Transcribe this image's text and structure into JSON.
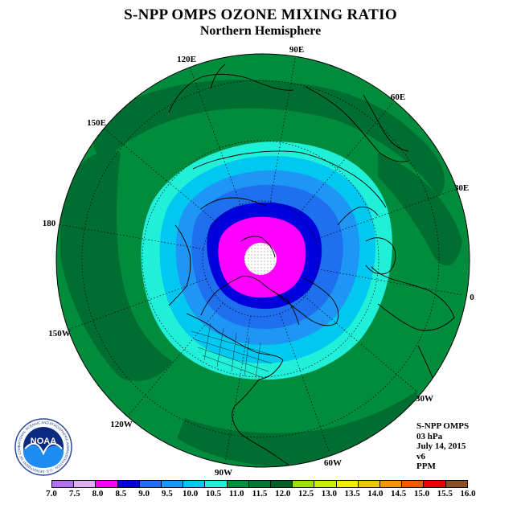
{
  "title": "S-NPP OMPS OZONE MIXING RATIO",
  "subtitle": "Northern Hemisphere",
  "longitude_labels": [
    "90E",
    "120E",
    "60E",
    "150E",
    "30E",
    "180",
    "0",
    "150W",
    "30W",
    "120W",
    "60W",
    "90W"
  ],
  "info": {
    "line1": "S-NPP OMPS",
    "line2": "03 hPa",
    "line3": "July 14, 2015",
    "line4": "v6",
    "line5": "PPM"
  },
  "logo": {
    "text": "NOAA",
    "ring_text": "NATIONAL OCEANIC AND ATMOSPHERIC ADMINISTRATION · U.S. DEPARTMENT OF COMMERCE"
  },
  "colorbar": {
    "ticks": [
      "7.0",
      "7.5",
      "8.0",
      "8.5",
      "9.0",
      "9.5",
      "10.0",
      "10.5",
      "11.0",
      "11.5",
      "12.0",
      "12.5",
      "13.0",
      "13.5",
      "14.0",
      "14.5",
      "15.0",
      "15.5",
      "16.0"
    ],
    "colors": [
      "#b070f0",
      "#e0b0f0",
      "#ff00ff",
      "#0000dd",
      "#1e70ee",
      "#1e96f5",
      "#00c8f0",
      "#20f0d8",
      "#009040",
      "#007a35",
      "#006028",
      "#a0e000",
      "#c8f000",
      "#f0f000",
      "#f0c800",
      "#f09600",
      "#f05a00",
      "#f00000",
      "#8c5028"
    ]
  },
  "field_colors": {
    "outer": "#008c3c",
    "dark": "#006e30",
    "aqua": "#20f0d8",
    "cyan": "#00c8f0",
    "lightblue": "#1e96f5",
    "blue": "#1e70ee",
    "darkblue": "#0000dd",
    "magenta": "#ff00ff",
    "pole": "#ffffff"
  }
}
